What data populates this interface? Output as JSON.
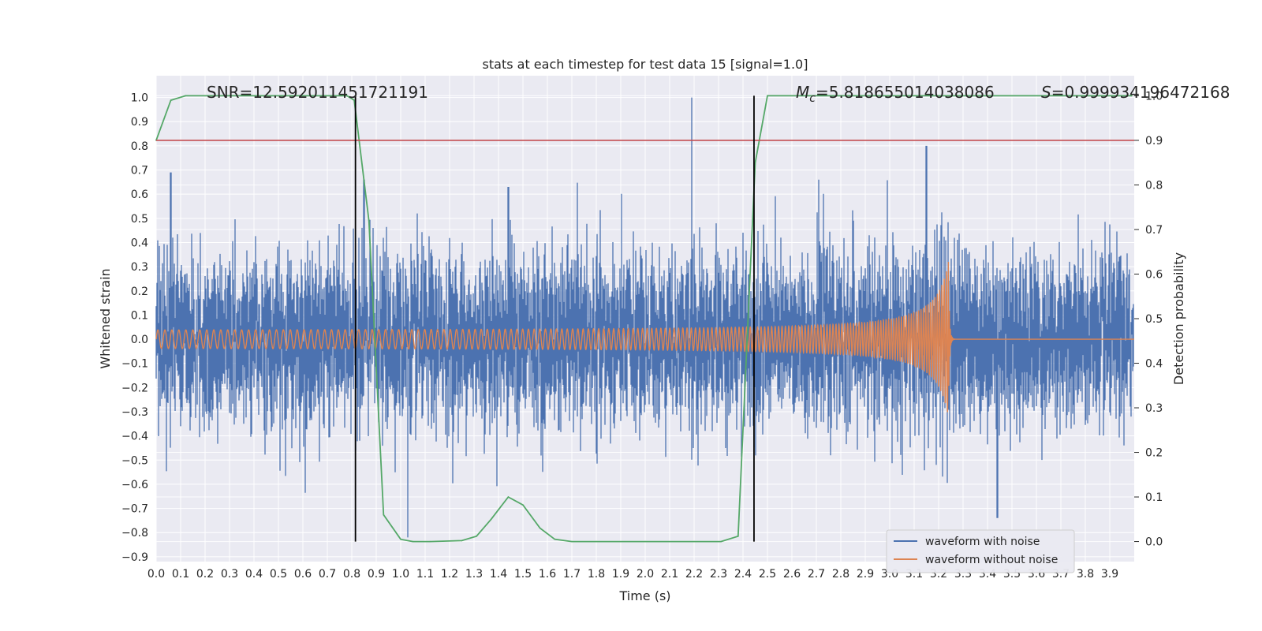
{
  "chart_data": {
    "type": "line",
    "title": "stats at each timestep for test data 15 [signal=1.0]",
    "xlabel": "Time (s)",
    "ylabel": "Whitened strain",
    "y2label": "Detection probability",
    "xlim": [
      0.0,
      4.0
    ],
    "ylim": [
      -0.92,
      1.09
    ],
    "y2lim": [
      -0.045,
      1.045
    ],
    "xticks": [
      "0.0",
      "0.1",
      "0.2",
      "0.3",
      "0.4",
      "0.5",
      "0.6",
      "0.7",
      "0.8",
      "0.9",
      "1.0",
      "1.1",
      "1.2",
      "1.3",
      "1.4",
      "1.5",
      "1.6",
      "1.7",
      "1.8",
      "1.9",
      "2.0",
      "2.1",
      "2.2",
      "2.3",
      "2.4",
      "2.5",
      "2.6",
      "2.7",
      "2.8",
      "2.9",
      "3.0",
      "3.1",
      "3.2",
      "3.3",
      "3.4",
      "3.5",
      "3.6",
      "3.7",
      "3.8",
      "3.9"
    ],
    "yticks": [
      "1.0",
      "0.9",
      "0.8",
      "0.7",
      "0.6",
      "0.5",
      "0.4",
      "0.3",
      "0.2",
      "0.1",
      "0.0",
      "−0.1",
      "−0.2",
      "−0.3",
      "−0.4",
      "−0.5",
      "−0.6",
      "−0.7",
      "−0.8",
      "−0.9"
    ],
    "y2ticks": [
      "1.0",
      "0.9",
      "0.8",
      "0.7",
      "0.6",
      "0.5",
      "0.4",
      "0.3",
      "0.2",
      "0.1",
      "0.0"
    ],
    "annotations": {
      "snr": "SNR=12.592011451721191",
      "mc_symbol": "M",
      "mc_sub": "c",
      "mc_value": "=5.818655014038086",
      "s_symbol": "S",
      "s_value": "=0.999934196472168"
    },
    "series": [
      {
        "name": "waveform with noise",
        "color": "#4c72b0",
        "axis": "left",
        "noise_std": 0.17,
        "peak_times": [
          0.06,
          0.85,
          1.03,
          1.44,
          2.19,
          2.71,
          3.15,
          3.44
        ],
        "peak_values": [
          0.69,
          0.66,
          -0.82,
          0.63,
          1.0,
          0.66,
          0.8,
          -0.74
        ]
      },
      {
        "name": "waveform without noise",
        "color": "#dd8452",
        "axis": "left",
        "t_start": 0.0,
        "t_merger": 3.24,
        "f_start": 35,
        "f_merger": 110,
        "amp_start": 0.035,
        "amp_peak": 0.32
      },
      {
        "name": "detection probability",
        "color": "#55a868",
        "axis": "right",
        "x": [
          0.0,
          0.06,
          0.12,
          0.2,
          0.4,
          0.6,
          0.78,
          0.81,
          0.87,
          0.93,
          1.0,
          1.05,
          1.12,
          1.25,
          1.31,
          1.37,
          1.44,
          1.5,
          1.57,
          1.63,
          1.7,
          1.8,
          2.0,
          2.2,
          2.31,
          2.38,
          2.45,
          2.5,
          2.6,
          3.0,
          3.5,
          3.99
        ],
        "y": [
          0.9,
          0.99,
          1.0,
          1.0,
          1.0,
          1.0,
          1.0,
          0.99,
          0.72,
          0.06,
          0.005,
          0.0,
          0.0,
          0.002,
          0.012,
          0.05,
          0.1,
          0.082,
          0.03,
          0.005,
          0.0,
          0.0,
          0.0,
          0.0,
          0.0,
          0.012,
          0.85,
          1.0,
          1.0,
          1.0,
          1.0,
          1.0
        ]
      },
      {
        "name": "threshold",
        "color": "#c44e52",
        "axis": "right",
        "value": 0.9
      }
    ],
    "vertical_lines": [
      0.815,
      2.445
    ],
    "legend": {
      "placement": "lower-right",
      "entries": [
        {
          "label": "waveform with noise",
          "color": "#4c72b0"
        },
        {
          "label": "waveform without noise",
          "color": "#dd8452"
        }
      ]
    }
  }
}
